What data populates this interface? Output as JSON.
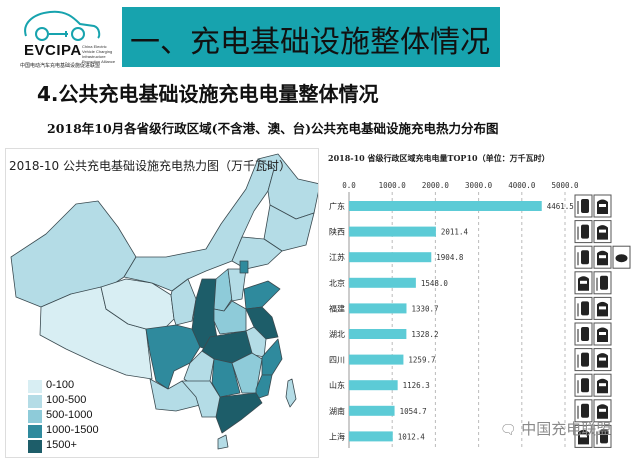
{
  "logo": {
    "brand": "EVCIPA",
    "english": "China Electric Vehicle Charging Infrastructure Promotion Alliance",
    "chinese": "中国电动汽车充电基础设施促进联盟"
  },
  "header": {
    "title": "一、充电基础设施整体情况"
  },
  "subtitle": "4.公共充电基础设施充电电量整体情况",
  "caption": "2018年10月各省级行政区域(不含港、澳、台)公共充电基础设施充电热力分布图",
  "map": {
    "title": "2018-10 公共充电基础设施充电热力图（万千瓦时）",
    "legend": [
      {
        "label": "0-100",
        "color": "#d8eef3"
      },
      {
        "label": "100-500",
        "color": "#b4dce6"
      },
      {
        "label": "500-1000",
        "color": "#8ecbd9"
      },
      {
        "label": "1000-1500",
        "color": "#2f8a9d"
      },
      {
        "label": "1500+",
        "color": "#1d5d69"
      }
    ]
  },
  "chart_data": {
    "type": "bar",
    "orientation": "horizontal",
    "title": "2018-10 省级行政区域充电电量TOP10（单位：万千瓦时）",
    "categories": [
      "广东",
      "陕西",
      "江苏",
      "北京",
      "福建",
      "湖北",
      "四川",
      "山东",
      "湖南",
      "上海"
    ],
    "values": [
      4461.5,
      2011.4,
      1904.8,
      1548.0,
      1330.7,
      1328.2,
      1259.7,
      1126.3,
      1054.7,
      1012.4
    ],
    "value_labels": [
      "4461.5",
      "2011.4",
      "1904.8",
      "1548.0",
      "1330.7",
      "1328.2",
      "1259.7",
      "1126.3",
      "1054.7",
      "1012.4"
    ],
    "xlim": [
      0,
      5000
    ],
    "xticks": [
      "0.0",
      "1000.0",
      "2000.0",
      "3000.0",
      "4000.0",
      "5000.0"
    ],
    "grid": "vertical dashed",
    "bar_color": "#5ccbd6"
  },
  "row_icons": [
    [
      "charger-icon",
      "car-icon"
    ],
    [
      "charger-icon",
      "car-icon"
    ],
    [
      "charger-icon",
      "car-icon",
      "car-front-icon"
    ],
    [
      "car-icon",
      "charger-icon"
    ],
    [
      "charger-icon",
      "car-icon"
    ],
    [
      "charger-icon",
      "car-icon"
    ],
    [
      "charger-icon",
      "car-icon"
    ],
    [
      "charger-icon",
      "car-icon"
    ],
    [
      "charger-icon",
      "car-icon"
    ],
    [
      "car-icon",
      "charger-icon"
    ]
  ],
  "watermark": "中国充电联盟"
}
